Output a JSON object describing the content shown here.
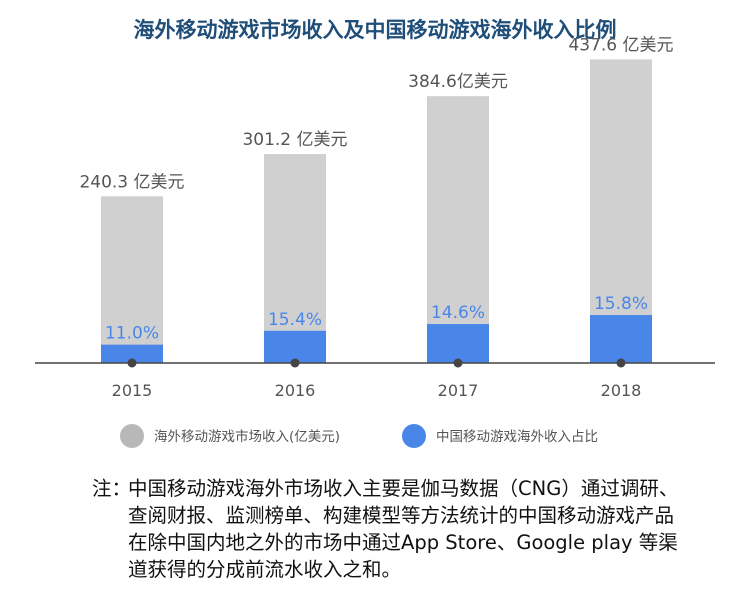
{
  "chart_data": {
    "type": "bar",
    "title": "海外移动游戏市场收入及中国移动游戏海外收入比例",
    "categories": [
      "2015",
      "2016",
      "2017",
      "2018"
    ],
    "series": [
      {
        "name": "海外移动游戏市场收入(亿美元)",
        "values": [
          240.3,
          301.2,
          384.6,
          437.6
        ],
        "labels": [
          "240.3 亿美元",
          "301.2 亿美元",
          "384.6亿美元",
          "437.6 亿美元"
        ],
        "color": "#d0d0d0"
      },
      {
        "name": "中国移动游戏海外收入占比",
        "values": [
          11.0,
          15.4,
          14.6,
          15.8
        ],
        "labels": [
          "11.0%",
          "15.4%",
          "14.6%",
          "15.8%"
        ],
        "color": "#4a86e8"
      }
    ],
    "ylim": [
      0,
      480
    ],
    "grid": false,
    "legend_position": "bottom"
  },
  "colors": {
    "title": "#1f4e79",
    "bar_gray": "#d0d0d0",
    "bar_blue": "#4a86e8",
    "label_blue": "#4a86e8",
    "axis": "#444444",
    "text": "#555555"
  },
  "note": {
    "label": "注：",
    "text": "中国移动游戏海外市场收入主要是伽马数据（CNG）通过调研、查阅财报、监测榜单、构建模型等方法统计的中国移动游戏产品在除中国内地之外的市场中通过App Store、Google play 等渠道获得的分成前流水收入之和。"
  }
}
